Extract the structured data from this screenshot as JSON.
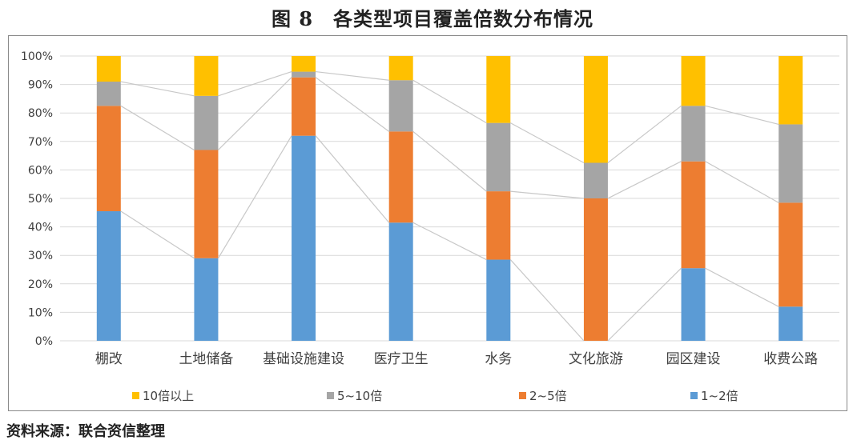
{
  "title": "图 8　各类型项目覆盖倍数分布情况",
  "source": "资料来源：联合资信整理",
  "chart_data": {
    "type": "bar",
    "stacked": true,
    "normalized": true,
    "categories": [
      "棚改",
      "土地储备",
      "基础设施建设",
      "医疗卫生",
      "水务",
      "文化旅游",
      "园区建设",
      "收费公路"
    ],
    "yticks": [
      "0%",
      "10%",
      "20%",
      "30%",
      "40%",
      "50%",
      "60%",
      "70%",
      "80%",
      "90%",
      "100%"
    ],
    "ylim": [
      0,
      100
    ],
    "grid": true,
    "legend_position": "bottom",
    "series": [
      {
        "name": "1~2倍",
        "color": "#5b9bd5",
        "values": [
          45.5,
          29,
          72,
          41.5,
          28.5,
          0,
          25.5,
          12
        ]
      },
      {
        "name": "2~5倍",
        "color": "#ed7d31",
        "values": [
          37,
          38,
          20.5,
          32,
          24,
          50,
          37.5,
          36.5
        ]
      },
      {
        "name": "5~10倍",
        "color": "#a5a5a5",
        "values": [
          8.5,
          19,
          2,
          18,
          24,
          12.5,
          19.5,
          27.5
        ]
      },
      {
        "name": "10倍以上",
        "color": "#ffc000",
        "values": [
          9,
          14,
          5.5,
          8.5,
          23.5,
          37.5,
          17.5,
          24
        ]
      }
    ],
    "legend_order": [
      "10倍以上",
      "5~10倍",
      "2~5倍",
      "1~2倍"
    ]
  }
}
